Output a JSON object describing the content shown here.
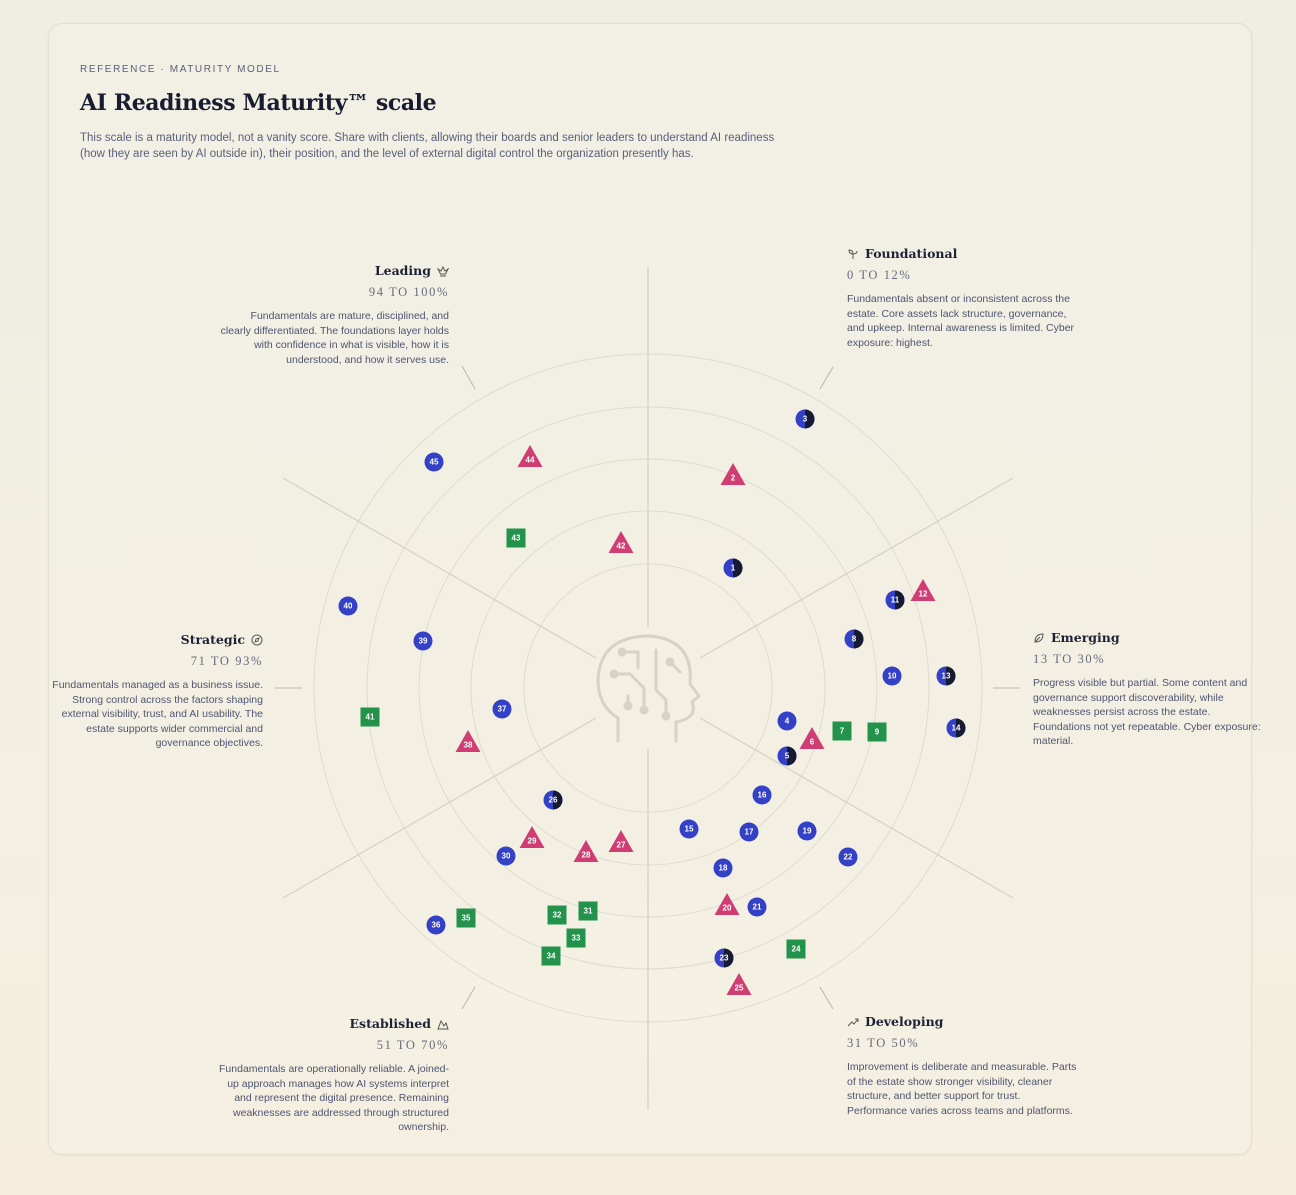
{
  "header": {
    "eyebrow": "REFERENCE · MATURITY MODEL",
    "title": "AI Readiness Maturity™ scale",
    "description": "This scale is a maturity model, not a vanity score. Share with clients, allowing their boards and senior leaders to understand AI readiness (how they are seen by AI outside in), their position, and the level of external digital control the organization presently has."
  },
  "segments": [
    {
      "title": "Leading",
      "range": "94 TO 100%",
      "description": "Fundamentals are mature, disciplined, and clearly differentiated. The foundations layer holds with confidence in what is visible, how it is understood, and how it serves use."
    },
    {
      "title": "Foundational",
      "range": "0 TO 12%",
      "description": "Fundamentals absent or inconsistent across the estate. Core assets lack structure, governance, and upkeep. Internal awareness is limited. Cyber exposure: highest."
    },
    {
      "title": "Strategic",
      "range": "71 TO 93%",
      "description": "Fundamentals managed as a business issue. Strong control across the factors shaping external visibility, trust, and AI usability. The estate supports wider commercial and governance objectives."
    },
    {
      "title": "Emerging",
      "range": "13 TO 30%",
      "description": "Progress visible but partial. Some content and governance support discoverability, while weaknesses persist across the estate. Foundations not yet repeatable. Cyber exposure: material."
    },
    {
      "title": "Established",
      "range": "51 TO 70%",
      "description": "Fundamentals are operationally reliable. A joined-up approach manages how AI systems interpret and represent the digital presence. Remaining weaknesses are addressed through structured ownership."
    },
    {
      "title": "Developing",
      "range": "31 TO 50%",
      "description": "Improvement is deliberate and measurable. Parts of the estate show stronger visibility, cleaner structure, and better support for trust. Performance varies across teams and platforms."
    }
  ],
  "markers": [
    "1",
    "2",
    "3",
    "4",
    "5",
    "6",
    "7",
    "8",
    "9",
    "10",
    "11",
    "12",
    "13",
    "14",
    "15",
    "16",
    "17",
    "18",
    "19",
    "20",
    "21",
    "22",
    "23",
    "24",
    "25",
    "26",
    "27",
    "28",
    "29",
    "30",
    "31",
    "32",
    "33",
    "34",
    "35",
    "36",
    "37",
    "38",
    "39",
    "40",
    "41",
    "42",
    "43",
    "44",
    "45"
  ]
}
